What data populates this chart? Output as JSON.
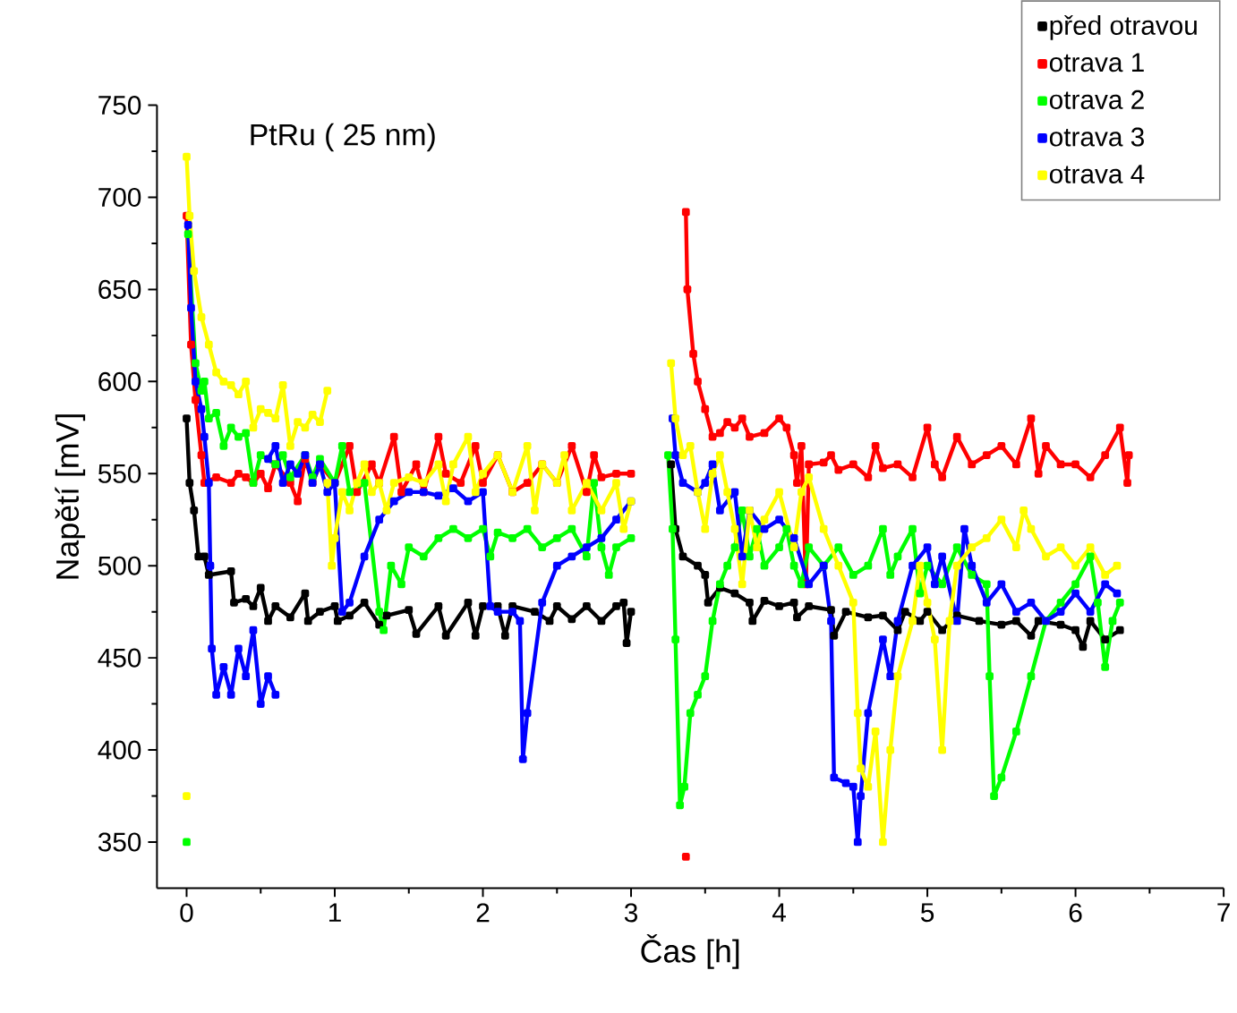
{
  "chart_data": {
    "type": "line",
    "title": "PtRu ( 25 nm)",
    "xlabel": "Čas [h]",
    "ylabel": "Napětí [mV]",
    "xlim": [
      -0.2,
      7
    ],
    "ylim": [
      325,
      750
    ],
    "xticks": [
      0,
      1,
      2,
      3,
      4,
      5,
      6,
      7
    ],
    "yticks": [
      350,
      400,
      450,
      500,
      550,
      600,
      650,
      700,
      750
    ],
    "legend": "top right",
    "marker": "square",
    "line_style": "solid",
    "series": [
      {
        "name": "před otravou",
        "color": "#000000",
        "x": [
          0,
          0.02,
          0.05,
          0.08,
          0.12,
          0.15,
          0.3,
          0.32,
          0.4,
          0.45,
          0.5,
          0.55,
          0.6,
          0.7,
          0.8,
          0.82,
          0.9,
          1.0,
          1.02,
          1.1,
          1.2,
          1.3,
          1.35,
          1.5,
          1.55,
          1.7,
          1.75,
          1.9,
          1.95,
          2.0,
          2.1,
          2.15,
          2.2,
          2.35,
          2.45,
          2.5,
          2.6,
          2.7,
          2.8,
          2.9,
          2.95,
          2.97,
          3.0,
          null,
          3.27,
          3.3,
          3.35,
          3.45,
          3.5,
          3.52,
          3.6,
          3.7,
          3.8,
          3.82,
          3.9,
          4.0,
          4.1,
          4.12,
          4.2,
          4.35,
          4.37,
          4.45,
          4.6,
          4.7,
          4.8,
          4.85,
          4.95,
          5.0,
          5.1,
          5.2,
          5.35,
          5.5,
          5.6,
          5.7,
          5.75,
          5.9,
          6.0,
          6.05,
          6.1,
          6.2,
          6.3
        ],
        "values": [
          580,
          545,
          530,
          505,
          505,
          495,
          497,
          480,
          482,
          478,
          488,
          470,
          478,
          472,
          485,
          470,
          475,
          478,
          470,
          473,
          480,
          468,
          473,
          476,
          463,
          478,
          462,
          480,
          462,
          478,
          478,
          462,
          478,
          475,
          470,
          478,
          471,
          478,
          470,
          478,
          480,
          458,
          475,
          null,
          555,
          520,
          505,
          500,
          495,
          480,
          488,
          485,
          480,
          470,
          481,
          478,
          480,
          472,
          478,
          476,
          462,
          475,
          472,
          473,
          465,
          475,
          470,
          475,
          465,
          473,
          470,
          468,
          470,
          462,
          470,
          468,
          465,
          456,
          470,
          460,
          465
        ]
      },
      {
        "name": "otrava 1",
        "color": "#ff0000",
        "x": [
          0,
          0.03,
          0.06,
          0.1,
          0.12,
          0.2,
          0.3,
          0.35,
          0.4,
          0.45,
          0.5,
          0.55,
          0.6,
          0.7,
          0.75,
          0.8,
          0.85,
          0.9,
          1.0,
          1.1,
          1.15,
          1.25,
          1.3,
          1.4,
          1.45,
          1.55,
          1.6,
          1.7,
          1.75,
          1.85,
          1.95,
          2.0,
          2.1,
          2.2,
          2.3,
          2.4,
          2.5,
          2.6,
          2.7,
          2.75,
          2.8,
          2.9,
          3.0,
          null,
          3.37,
          null,
          3.37,
          3.38,
          3.42,
          3.45,
          3.5,
          3.55,
          3.6,
          3.65,
          3.7,
          3.75,
          3.8,
          3.9,
          4.0,
          4.05,
          4.1,
          4.12,
          4.15,
          4.18,
          4.2,
          4.3,
          4.35,
          4.4,
          4.5,
          4.6,
          4.65,
          4.7,
          4.8,
          4.9,
          5.0,
          5.05,
          5.1,
          5.2,
          5.3,
          5.4,
          5.5,
          5.6,
          5.7,
          5.75,
          5.8,
          5.9,
          6.0,
          6.1,
          6.2,
          6.3,
          6.35,
          6.36
        ],
        "values": [
          690,
          620,
          590,
          560,
          545,
          548,
          545,
          550,
          548,
          545,
          550,
          542,
          555,
          545,
          535,
          558,
          545,
          555,
          545,
          565,
          540,
          555,
          545,
          570,
          540,
          555,
          540,
          570,
          550,
          545,
          565,
          545,
          560,
          540,
          545,
          555,
          545,
          565,
          540,
          560,
          548,
          550,
          550,
          null,
          342,
          null,
          692,
          650,
          615,
          600,
          585,
          570,
          572,
          578,
          575,
          580,
          570,
          572,
          580,
          575,
          560,
          545,
          565,
          490,
          555,
          556,
          560,
          552,
          555,
          548,
          565,
          553,
          555,
          548,
          575,
          555,
          548,
          570,
          555,
          560,
          565,
          555,
          580,
          550,
          565,
          555,
          555,
          548,
          560,
          575,
          545,
          560
        ]
      },
      {
        "name": "otrava 2",
        "color": "#00ff00",
        "x": [
          0,
          null,
          0.01,
          0.06,
          0.1,
          0.12,
          0.15,
          0.2,
          0.25,
          0.3,
          0.35,
          0.4,
          0.45,
          0.5,
          0.6,
          0.65,
          0.7,
          0.8,
          0.85,
          0.9,
          1.0,
          1.05,
          1.1,
          1.2,
          1.3,
          1.33,
          1.38,
          1.45,
          1.5,
          1.6,
          1.7,
          1.8,
          1.9,
          2.0,
          2.05,
          2.1,
          2.2,
          2.3,
          2.4,
          2.5,
          2.6,
          2.7,
          2.75,
          2.8,
          2.85,
          2.9,
          3.0,
          null,
          3.25,
          3.28,
          3.3,
          3.33,
          3.36,
          3.4,
          3.45,
          3.5,
          3.55,
          3.6,
          3.65,
          3.7,
          3.75,
          3.8,
          3.85,
          3.9,
          4.0,
          4.05,
          4.1,
          4.15,
          4.2,
          4.3,
          4.4,
          4.5,
          4.6,
          4.7,
          4.75,
          4.8,
          4.9,
          4.95,
          5.0,
          5.1,
          5.2,
          5.3,
          5.4,
          5.42,
          5.45,
          5.5,
          5.6,
          5.7,
          5.8,
          5.9,
          6.0,
          6.1,
          6.15,
          6.2,
          6.25,
          6.3
        ],
        "values": [
          350,
          null,
          680,
          610,
          595,
          600,
          580,
          583,
          565,
          575,
          570,
          572,
          545,
          560,
          555,
          560,
          548,
          560,
          548,
          558,
          545,
          565,
          540,
          545,
          475,
          465,
          500,
          490,
          510,
          505,
          515,
          520,
          515,
          520,
          505,
          518,
          515,
          520,
          510,
          515,
          520,
          505,
          545,
          510,
          495,
          510,
          515,
          null,
          560,
          520,
          460,
          370,
          380,
          420,
          430,
          440,
          470,
          490,
          500,
          510,
          530,
          505,
          520,
          500,
          510,
          520,
          500,
          490,
          510,
          500,
          510,
          495,
          500,
          520,
          495,
          505,
          520,
          485,
          500,
          490,
          510,
          495,
          490,
          440,
          375,
          385,
          410,
          440,
          470,
          480,
          490,
          505,
          480,
          445,
          470,
          480
        ]
      },
      {
        "name": "otrava 3",
        "color": "#0000ff",
        "x": [
          0.01,
          0.03,
          0.06,
          0.1,
          0.12,
          0.15,
          0.16,
          0.17,
          0.2,
          0.25,
          0.3,
          0.35,
          0.4,
          0.45,
          0.5,
          0.55,
          0.6,
          null,
          0.55,
          0.6,
          0.65,
          0.7,
          0.75,
          0.8,
          0.85,
          0.9,
          0.95,
          1.0,
          1.05,
          1.1,
          1.2,
          1.3,
          1.4,
          1.5,
          1.6,
          1.7,
          1.8,
          1.9,
          2.0,
          2.05,
          2.1,
          2.2,
          2.25,
          2.27,
          2.3,
          2.4,
          2.5,
          2.6,
          2.7,
          2.8,
          2.9,
          3.0,
          null,
          3.28,
          3.3,
          3.35,
          3.45,
          3.5,
          3.55,
          3.6,
          3.7,
          3.75,
          3.8,
          3.9,
          4.0,
          4.1,
          4.2,
          4.3,
          4.35,
          4.37,
          4.45,
          4.5,
          4.53,
          4.55,
          4.6,
          4.7,
          4.75,
          4.8,
          4.9,
          5.0,
          5.05,
          5.1,
          5.2,
          5.25,
          5.3,
          5.4,
          5.5,
          5.6,
          5.7,
          5.8,
          5.9,
          6.0,
          6.1,
          6.2,
          6.28
        ],
        "values": [
          685,
          640,
          600,
          585,
          570,
          545,
          500,
          455,
          430,
          445,
          430,
          455,
          440,
          465,
          425,
          440,
          430,
          null,
          558,
          565,
          545,
          555,
          550,
          560,
          545,
          555,
          540,
          545,
          475,
          480,
          505,
          525,
          535,
          540,
          540,
          538,
          542,
          535,
          540,
          478,
          475,
          475,
          470,
          395,
          420,
          480,
          500,
          505,
          510,
          515,
          525,
          535,
          null,
          580,
          560,
          545,
          540,
          545,
          555,
          530,
          540,
          505,
          530,
          520,
          525,
          515,
          490,
          500,
          470,
          385,
          382,
          380,
          350,
          375,
          420,
          460,
          440,
          470,
          500,
          510,
          490,
          505,
          470,
          520,
          500,
          480,
          490,
          475,
          480,
          470,
          475,
          485,
          475,
          490,
          485
        ]
      },
      {
        "name": "otrava 4",
        "color": "#ffff00",
        "x": [
          0,
          null,
          0,
          0.02,
          0.05,
          0.1,
          0.15,
          0.2,
          0.25,
          0.3,
          0.35,
          0.4,
          0.45,
          0.5,
          0.55,
          0.6,
          0.65,
          0.7,
          0.75,
          0.8,
          0.85,
          0.9,
          0.95,
          null,
          0.95,
          0.98,
          1.0,
          1.05,
          1.1,
          1.15,
          1.2,
          1.25,
          1.3,
          1.35,
          1.4,
          1.5,
          1.6,
          1.7,
          1.75,
          1.8,
          1.9,
          1.95,
          2.0,
          2.1,
          2.2,
          2.3,
          2.35,
          2.4,
          2.5,
          2.55,
          2.6,
          2.7,
          2.8,
          2.9,
          2.95,
          3.0,
          null,
          3.27,
          3.3,
          3.35,
          3.4,
          3.45,
          3.5,
          3.55,
          3.6,
          3.65,
          3.7,
          3.75,
          3.8,
          3.85,
          3.9,
          4.0,
          4.1,
          4.15,
          4.2,
          4.3,
          4.4,
          4.5,
          4.53,
          4.55,
          4.6,
          4.65,
          4.7,
          4.75,
          4.8,
          4.9,
          4.95,
          5.0,
          5.05,
          5.1,
          5.15,
          5.2,
          5.3,
          5.4,
          5.5,
          5.6,
          5.65,
          5.7,
          5.8,
          5.9,
          6.0,
          6.1,
          6.2,
          6.28
        ],
        "values": [
          375,
          null,
          722,
          690,
          660,
          635,
          620,
          605,
          600,
          598,
          593,
          600,
          575,
          585,
          583,
          580,
          598,
          565,
          578,
          575,
          582,
          578,
          595,
          null,
          545,
          500,
          515,
          540,
          530,
          545,
          555,
          540,
          545,
          530,
          545,
          548,
          545,
          555,
          535,
          555,
          570,
          540,
          550,
          560,
          540,
          565,
          530,
          555,
          545,
          560,
          530,
          545,
          530,
          545,
          520,
          535,
          null,
          610,
          580,
          560,
          565,
          540,
          520,
          550,
          560,
          540,
          520,
          490,
          530,
          510,
          525,
          540,
          510,
          540,
          548,
          520,
          500,
          480,
          420,
          390,
          380,
          410,
          350,
          400,
          440,
          470,
          500,
          480,
          460,
          400,
          470,
          500,
          510,
          515,
          525,
          510,
          530,
          520,
          505,
          510,
          500,
          510,
          495,
          500
        ]
      }
    ]
  }
}
